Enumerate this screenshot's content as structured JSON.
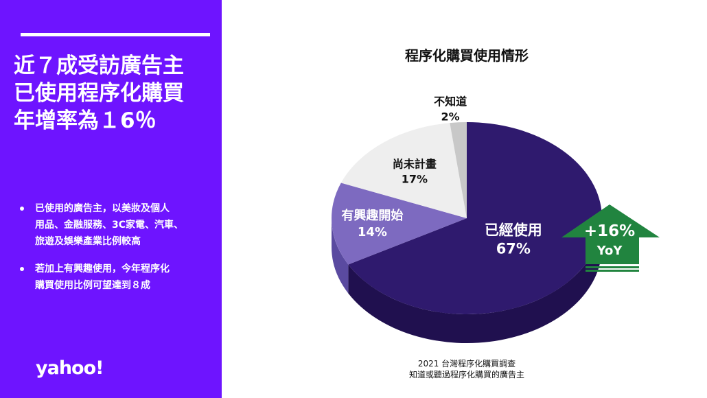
{
  "headline": [
    "近７成受訪廣告主",
    "已使用程序化購買",
    "年增率為１6％"
  ],
  "bullets": [
    [
      "已使用的廣告主，以美妝及個人",
      "用品、金融服務、3C家電、汽車、",
      "旅遊及娛樂產業比例較高"
    ],
    [
      "若加上有興趣使用，今年程序化",
      "購買使用比例可望達到８成"
    ]
  ],
  "logo": "yahoo!",
  "source": [
    "2021 台灣程序化購買調查",
    "知道或聽過程序化購買的廣告主"
  ],
  "yoy_badge": {
    "value": "+16%",
    "label": "YoY",
    "color": "#21843f"
  },
  "colors": {
    "panel": "#6e14ff"
  },
  "chart_data": {
    "type": "pie",
    "title": "程序化購買使用情形",
    "slices": [
      {
        "label": "已經使用",
        "value": 67,
        "value_label": "67%",
        "color": "#2f1a6e",
        "side_color": "#20104f"
      },
      {
        "label": "有興趣開始",
        "value": 14,
        "value_label": "14%",
        "color": "#7d6ac0",
        "side_color": "#5a4aa0"
      },
      {
        "label": "尚未計畫",
        "value": 17,
        "value_label": "17%",
        "color": "#eeeeee",
        "side_color": "#c9c9c9"
      },
      {
        "label": "不知道",
        "value": 2,
        "value_label": "2%",
        "color": "#c8c8c8",
        "side_color": "#a8a8a8"
      }
    ]
  }
}
